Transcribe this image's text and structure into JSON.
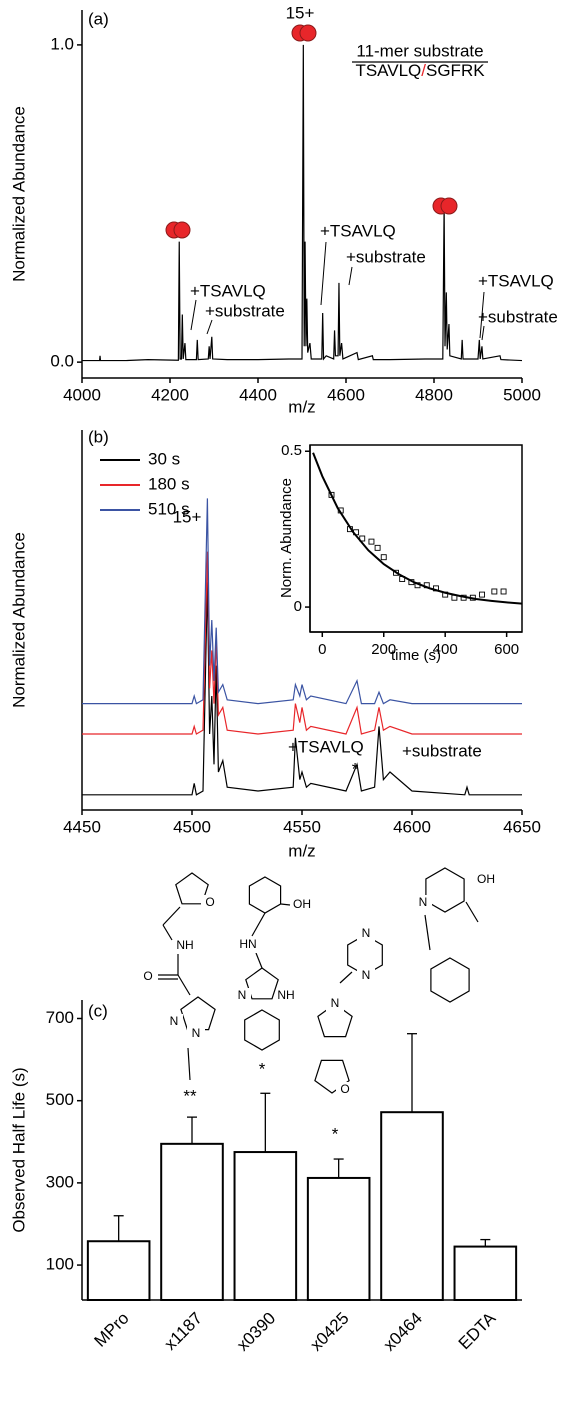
{
  "chart_data": [
    {
      "type": "line",
      "panel_label": "(a)",
      "xlabel": "m/z",
      "ylabel": "Normalized Abundance",
      "xlim": [
        4000,
        5000
      ],
      "xticks": [
        4000,
        4200,
        4400,
        4600,
        4800,
        5000
      ],
      "ylim": [
        -0.05,
        1.11
      ],
      "yticks": [
        {
          "value": 0,
          "label": "0.0"
        },
        {
          "value": 1,
          "label": "1.0"
        }
      ],
      "x": [
        4000,
        4040,
        4041,
        4042,
        4100,
        4150,
        4219,
        4221,
        4223,
        4226,
        4228,
        4230,
        4234,
        4236,
        4260,
        4262,
        4264,
        4287,
        4289,
        4291,
        4295,
        4297,
        4330,
        4400,
        4470,
        4500,
        4503,
        4505,
        4507,
        4509,
        4511,
        4513,
        4518,
        4521,
        4545,
        4547,
        4549,
        4555,
        4572,
        4574,
        4576,
        4582,
        4584,
        4586,
        4590,
        4593,
        4625,
        4628,
        4660,
        4662,
        4700,
        4780,
        4820,
        4823,
        4825,
        4828,
        4830,
        4834,
        4836,
        4862,
        4864,
        4866,
        4900,
        4903,
        4905,
        4909,
        4911,
        4950,
        4952,
        5000
      ],
      "series": [
        {
          "color": "#000000",
          "values": [
            0.005,
            0.005,
            0.02,
            0.005,
            0.005,
            0.008,
            0.006,
            0.38,
            0.01,
            0.01,
            0.15,
            0.01,
            0.06,
            0.008,
            0.008,
            0.07,
            0.008,
            0.01,
            0.05,
            0.01,
            0.08,
            0.01,
            0.008,
            0.008,
            0.01,
            0.01,
            1.0,
            0.05,
            0.38,
            0.05,
            0.2,
            0.03,
            0.06,
            0.01,
            0.01,
            0.155,
            0.01,
            0.02,
            0.01,
            0.1,
            0.02,
            0.02,
            0.25,
            0.02,
            0.06,
            0.01,
            0.03,
            0.008,
            0.02,
            0.008,
            0.008,
            0.01,
            0.01,
            0.5,
            0.05,
            0.22,
            0.04,
            0.12,
            0.02,
            0.01,
            0.07,
            0.01,
            0.01,
            0.07,
            0.01,
            0.05,
            0.01,
            0.02,
            0.008,
            0.005
          ]
        }
      ],
      "annotations": [
        "15+",
        "+TSAVLQ",
        "+substrate",
        "+TSAVLQ",
        "+substrate",
        "+TSAVLQ",
        "+substrate"
      ],
      "substrate_label": "11-mer substrate",
      "sequence": [
        "TSAVLQ",
        "/",
        "SGFRK"
      ],
      "sequence_colors": [
        "#000000",
        "#e8262a",
        "#000000"
      ]
    },
    {
      "type": "line",
      "panel_label": "(b)",
      "xlabel": "m/z",
      "ylabel": "Normalized Abundance",
      "xlim": [
        4450,
        4650
      ],
      "xticks": [
        4450,
        4500,
        4550,
        4600,
        4650
      ],
      "ylim": [
        0,
        1
      ],
      "legend": "upper left",
      "x": [
        4450,
        4500,
        4501,
        4502,
        4505,
        4507,
        4508,
        4509,
        4510,
        4511,
        4512,
        4514,
        4516,
        4530,
        4546,
        4547,
        4549,
        4550,
        4552,
        4554,
        4570,
        4575,
        4577,
        4583,
        4585,
        4587,
        4590,
        4600,
        4624,
        4625,
        4626,
        4650
      ],
      "series": [
        {
          "name": "30 s",
          "color": "#000000",
          "values": [
            0.04,
            0.04,
            0.07,
            0.04,
            0.05,
            0.6,
            0.2,
            0.3,
            0.12,
            0.38,
            0.1,
            0.13,
            0.06,
            0.05,
            0.06,
            0.19,
            0.08,
            0.1,
            0.06,
            0.07,
            0.05,
            0.12,
            0.05,
            0.06,
            0.22,
            0.08,
            0.1,
            0.05,
            0.04,
            0.06,
            0.04,
            0.04
          ]
        },
        {
          "name": "180 s",
          "color": "#e8262a",
          "values": [
            0.2,
            0.2,
            0.22,
            0.2,
            0.21,
            0.68,
            0.32,
            0.42,
            0.28,
            0.45,
            0.25,
            0.27,
            0.21,
            0.2,
            0.21,
            0.28,
            0.23,
            0.27,
            0.21,
            0.22,
            0.2,
            0.27,
            0.2,
            0.21,
            0.27,
            0.21,
            0.22,
            0.2,
            0.2,
            0.2,
            0.2,
            0.2
          ]
        },
        {
          "name": "510 s",
          "color": "#3b54a3",
          "values": [
            0.28,
            0.28,
            0.3,
            0.28,
            0.29,
            0.82,
            0.38,
            0.5,
            0.34,
            0.48,
            0.31,
            0.33,
            0.29,
            0.28,
            0.29,
            0.33,
            0.3,
            0.33,
            0.29,
            0.3,
            0.28,
            0.34,
            0.28,
            0.28,
            0.31,
            0.28,
            0.29,
            0.28,
            0.28,
            0.28,
            0.28,
            0.28
          ]
        }
      ],
      "annotations": [
        "15+",
        "+TSAVLQ",
        "*",
        "+substrate"
      ]
    },
    {
      "type": "scatter",
      "xlabel": "time (s)",
      "ylabel": "Norm. Abundance",
      "xlim": [
        -40,
        650
      ],
      "xticks": [
        0,
        200,
        400,
        600
      ],
      "ylim": [
        -0.08,
        0.52
      ],
      "yticks": [
        0,
        0.5
      ],
      "series": [
        {
          "color": "#000000",
          "marker": "square",
          "x": [
            30,
            60,
            90,
            110,
            130,
            160,
            180,
            200,
            240,
            260,
            290,
            310,
            340,
            370,
            400,
            430,
            460,
            490,
            520,
            560,
            590
          ],
          "values": [
            0.36,
            0.31,
            0.25,
            0.24,
            0.22,
            0.21,
            0.19,
            0.16,
            0.11,
            0.09,
            0.08,
            0.07,
            0.07,
            0.06,
            0.04,
            0.03,
            0.03,
            0.03,
            0.04,
            0.05,
            0.05
          ]
        },
        {
          "color": "#000000",
          "marker": "none",
          "x": [
            -30,
            0,
            50,
            100,
            150,
            200,
            250,
            300,
            350,
            400,
            450,
            500,
            550,
            600,
            650
          ],
          "values": [
            0.495,
            0.42,
            0.318,
            0.241,
            0.182,
            0.138,
            0.105,
            0.079,
            0.06,
            0.046,
            0.035,
            0.026,
            0.02,
            0.015,
            0.011
          ]
        }
      ]
    },
    {
      "type": "bar",
      "panel_label": "(c)",
      "ylabel": "Observed Half Life (s)",
      "categories": [
        "MPro",
        "x1187",
        "x0390",
        "x0425",
        "x0464",
        "EDTA"
      ],
      "values": [
        158,
        395,
        375,
        312,
        472,
        145
      ],
      "errors": [
        62,
        65,
        143,
        46,
        191,
        17
      ],
      "color": "#ffffff",
      "edgecolor": "#000000",
      "ylim": [
        15,
        745
      ],
      "yticks": [
        100,
        300,
        500,
        700
      ],
      "annotations": [
        "**",
        "*",
        "*"
      ],
      "structure_labels": [
        "O",
        "NH",
        "O",
        "N",
        "N",
        "OH",
        "HN",
        "N",
        "NH",
        "N",
        "N",
        "N",
        "O",
        "OH",
        "N"
      ]
    }
  ]
}
